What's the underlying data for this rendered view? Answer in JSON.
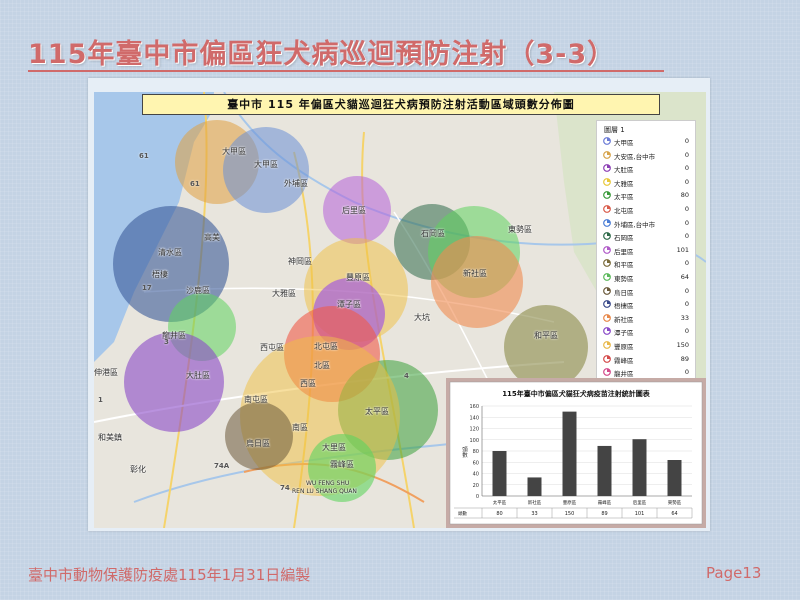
{
  "slide": {
    "title": "115年臺中市偏區狂犬病巡迴預防注射（3-3）",
    "footer_left": "臺中市動物保護防疫處115年1月31日編製",
    "footer_right": "Page13"
  },
  "map": {
    "title": "臺中市 115 年偏區犬貓巡迴狂犬病預防注射活動區域頭數分佈圖",
    "district_labels": [
      {
        "id": "dajia",
        "text": "大甲區"
      },
      {
        "id": "dajia2",
        "text": "大甲區"
      },
      {
        "id": "waipu",
        "text": "外埔區"
      },
      {
        "id": "houli",
        "text": "后里區"
      },
      {
        "id": "shigang",
        "text": "石岡區"
      },
      {
        "id": "dongshi",
        "text": "東勢區"
      },
      {
        "id": "xinshe",
        "text": "新社區"
      },
      {
        "id": "qingshui",
        "text": "清水區"
      },
      {
        "id": "gaomei",
        "text": "高美"
      },
      {
        "id": "wuqi",
        "text": "梧棲"
      },
      {
        "id": "shalu",
        "text": "沙鹿區"
      },
      {
        "id": "dayaq",
        "text": "大雅區"
      },
      {
        "id": "shengang",
        "text": "神岡區"
      },
      {
        "id": "fengyuan",
        "text": "豐原區"
      },
      {
        "id": "tanzi",
        "text": "潭子區"
      },
      {
        "id": "longjing",
        "text": "龍井區"
      },
      {
        "id": "dadu",
        "text": "大肚區"
      },
      {
        "id": "xitun",
        "text": "西屯區"
      },
      {
        "id": "beitun",
        "text": "北屯區"
      },
      {
        "id": "beiqu",
        "text": "北區"
      },
      {
        "id": "xiqu",
        "text": "西區"
      },
      {
        "id": "nantun",
        "text": "南屯區"
      },
      {
        "id": "nanqu",
        "text": "南區"
      },
      {
        "id": "taiping",
        "text": "太平區"
      },
      {
        "id": "dali",
        "text": "大里區"
      },
      {
        "id": "wuri",
        "text": "烏日區"
      },
      {
        "id": "wufeng",
        "text": "霧峰區"
      },
      {
        "id": "heping",
        "text": "和平區"
      },
      {
        "id": "shenjiang",
        "text": "伸港區"
      },
      {
        "id": "hemei",
        "text": "和美鎮"
      },
      {
        "id": "changhua",
        "text": "彰化"
      },
      {
        "id": "dakeng",
        "text": "大坑"
      },
      {
        "id": "wufeng_en",
        "text": "WU FENG SHU"
      },
      {
        "id": "renlu_en",
        "text": "REN LU SHANG QUAN"
      }
    ],
    "road_labels": [
      "61",
      "61",
      "17",
      "3",
      "74A",
      "74",
      "1",
      "4"
    ]
  },
  "legend": {
    "title": "圖層 1",
    "items": [
      {
        "name": "大甲區",
        "value": "0",
        "color": "#6b7bd6"
      },
      {
        "name": "大安區,台中市",
        "value": "0",
        "color": "#d6a34a"
      },
      {
        "name": "大肚區",
        "value": "0",
        "color": "#8c3fb5"
      },
      {
        "name": "大雅區",
        "value": "0",
        "color": "#e8c83a"
      },
      {
        "name": "太平區",
        "value": "80",
        "color": "#3a9a3a"
      },
      {
        "name": "北屯區",
        "value": "0",
        "color": "#d95b4a"
      },
      {
        "name": "外埔區,台中市",
        "value": "0",
        "color": "#4a7dd6"
      },
      {
        "name": "石岡區",
        "value": "0",
        "color": "#2f6b4a"
      },
      {
        "name": "后里區",
        "value": "101",
        "color": "#b05ac8"
      },
      {
        "name": "和平區",
        "value": "0",
        "color": "#7a6b3a"
      },
      {
        "name": "東勢區",
        "value": "64",
        "color": "#5ab85a"
      },
      {
        "name": "烏日區",
        "value": "0",
        "color": "#6b5a3a"
      },
      {
        "name": "梧棲區",
        "value": "0",
        "color": "#3a4a8a"
      },
      {
        "name": "新社區",
        "value": "33",
        "color": "#e8884a"
      },
      {
        "name": "潭子區",
        "value": "0",
        "color": "#8a4ac8"
      },
      {
        "name": "豐原區",
        "value": "150",
        "color": "#e8b84a"
      },
      {
        "name": "霧峰區",
        "value": "89",
        "color": "#d44a4a"
      },
      {
        "name": "龍井區",
        "value": "0",
        "color": "#d44a8a"
      }
    ]
  },
  "chart_data": {
    "type": "bar",
    "title": "115年臺中市偏區犬貓狂犬病疫苗注射統計圖表",
    "ylabel": "頭數",
    "categories": [
      "太平區",
      "新社區",
      "豐原區",
      "霧峰區",
      "后里區",
      "東勢區"
    ],
    "series": [
      {
        "name": "頭數",
        "values": [
          80,
          33,
          150,
          89,
          101,
          64
        ]
      }
    ],
    "ylim": [
      0,
      160
    ],
    "yticks": [
      0,
      20,
      40,
      60,
      80,
      100,
      120,
      140,
      160
    ],
    "bar_color": "#444444"
  }
}
